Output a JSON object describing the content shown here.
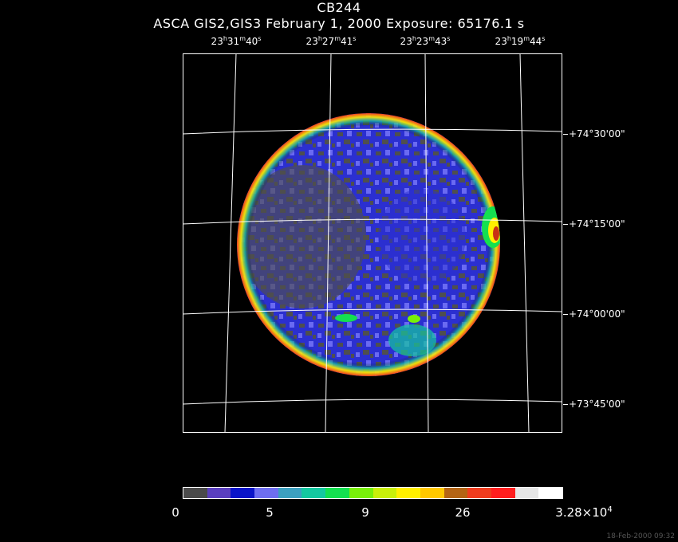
{
  "header": {
    "title": "CB244",
    "subtitle": "ASCA GIS2,GIS3 February 1, 2000 Exposure: 65176.1 s"
  },
  "ra_labels": [
    {
      "h": "23",
      "m": "31",
      "s": "40"
    },
    {
      "h": "23",
      "m": "27",
      "s": "41"
    },
    {
      "h": "23",
      "m": "23",
      "s": "43"
    },
    {
      "h": "23",
      "m": "19",
      "s": "44"
    }
  ],
  "dec_labels": [
    "+74°30'00\"",
    "+74°15'00\"",
    "+74°00'00\"",
    "+73°45'00\""
  ],
  "colorbar": {
    "colors": [
      "#4a4a4a",
      "#5a3fbf",
      "#0a14c8",
      "#6e6ef0",
      "#3ca0c0",
      "#14c8a0",
      "#14e050",
      "#78f00a",
      "#c8f00a",
      "#fff000",
      "#ffc800",
      "#b46414",
      "#f03c1e",
      "#ff1e1e",
      "#e6e6e6",
      "#ffffff"
    ],
    "labels": {
      "l0": "0",
      "l1": "5",
      "l2": "9",
      "l3": "26",
      "l4_base": "3.28×10",
      "l4_exp": "4"
    }
  },
  "timestamp": "18-Feb-2000 09:32"
}
